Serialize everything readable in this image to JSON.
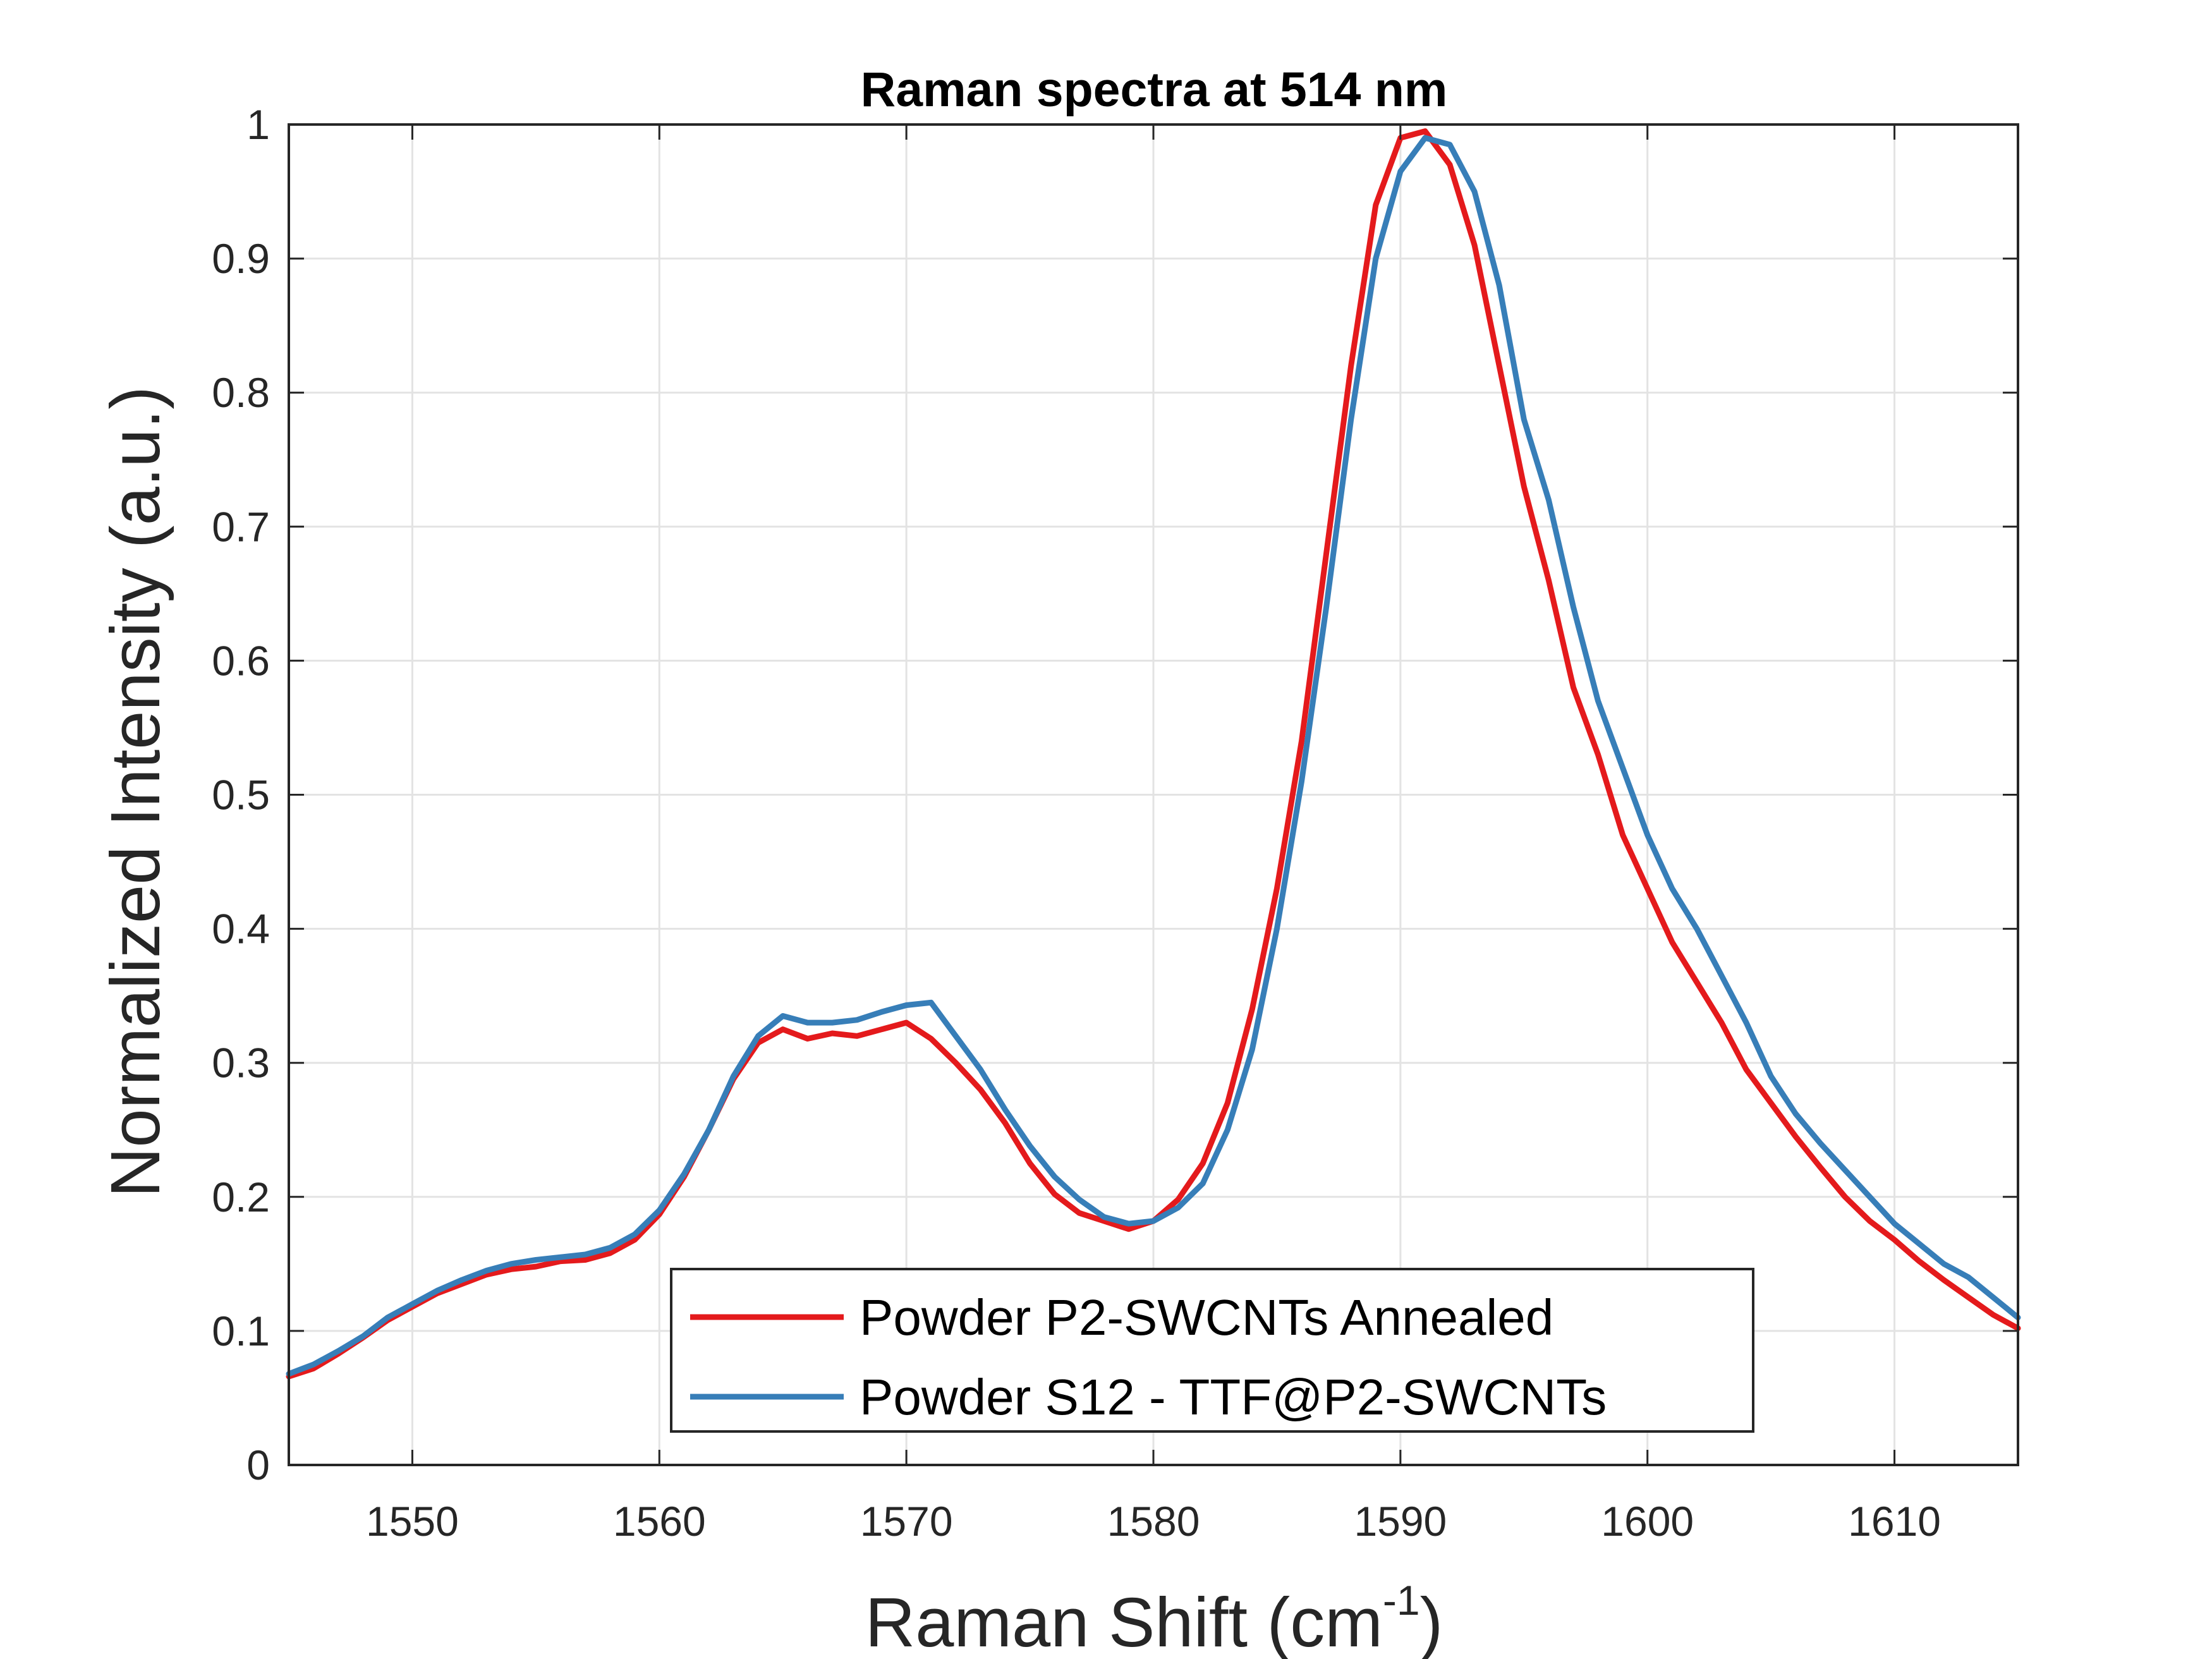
{
  "chart_data": {
    "type": "line",
    "title": "Raman spectra at 514 nm",
    "xlabel": "Raman Shift (cm",
    "xlabel_superscript": "-1",
    "xlabel_suffix": ")",
    "ylabel": "Normalized Intensity (a.u.)",
    "xlim": [
      1545,
      1615
    ],
    "ylim": [
      0,
      1
    ],
    "xticks": [
      1550,
      1560,
      1570,
      1580,
      1590,
      1600,
      1610
    ],
    "xtick_labels": [
      "1550",
      "1560",
      "1570",
      "1580",
      "1590",
      "1600",
      "1610"
    ],
    "yticks": [
      0,
      0.1,
      0.2,
      0.3,
      0.4,
      0.5,
      0.6,
      0.7,
      0.8,
      0.9,
      1
    ],
    "ytick_labels": [
      "0",
      "0.1",
      "0.2",
      "0.3",
      "0.4",
      "0.5",
      "0.6",
      "0.7",
      "0.8",
      "0.9",
      "1"
    ],
    "grid": true,
    "legend_position": "bottom-center",
    "series": [
      {
        "name": "Powder P2-SWCNTs Annealed",
        "color": "#e41a1c",
        "points": [
          [
            1545,
            0.066
          ],
          [
            1546,
            0.072
          ],
          [
            1547,
            0.083
          ],
          [
            1548,
            0.095
          ],
          [
            1549,
            0.108
          ],
          [
            1550,
            0.118
          ],
          [
            1551,
            0.128
          ],
          [
            1552,
            0.135
          ],
          [
            1553,
            0.142
          ],
          [
            1554,
            0.146
          ],
          [
            1555,
            0.148
          ],
          [
            1556,
            0.152
          ],
          [
            1557,
            0.153
          ],
          [
            1558,
            0.158
          ],
          [
            1559,
            0.168
          ],
          [
            1560,
            0.187
          ],
          [
            1561,
            0.215
          ],
          [
            1562,
            0.25
          ],
          [
            1563,
            0.288
          ],
          [
            1564,
            0.315
          ],
          [
            1565,
            0.325
          ],
          [
            1566,
            0.318
          ],
          [
            1567,
            0.322
          ],
          [
            1568,
            0.32
          ],
          [
            1569,
            0.325
          ],
          [
            1570,
            0.33
          ],
          [
            1571,
            0.318
          ],
          [
            1572,
            0.3
          ],
          [
            1573,
            0.28
          ],
          [
            1574,
            0.255
          ],
          [
            1575,
            0.225
          ],
          [
            1576,
            0.202
          ],
          [
            1577,
            0.188
          ],
          [
            1578,
            0.182
          ],
          [
            1579,
            0.176
          ],
          [
            1580,
            0.182
          ],
          [
            1581,
            0.198
          ],
          [
            1582,
            0.225
          ],
          [
            1583,
            0.27
          ],
          [
            1584,
            0.34
          ],
          [
            1585,
            0.43
          ],
          [
            1586,
            0.54
          ],
          [
            1587,
            0.68
          ],
          [
            1588,
            0.82
          ],
          [
            1589,
            0.94
          ],
          [
            1590,
            0.99
          ],
          [
            1591,
            0.995
          ],
          [
            1592,
            0.97
          ],
          [
            1593,
            0.91
          ],
          [
            1594,
            0.82
          ],
          [
            1595,
            0.73
          ],
          [
            1596,
            0.66
          ],
          [
            1597,
            0.58
          ],
          [
            1598,
            0.53
          ],
          [
            1599,
            0.47
          ],
          [
            1600,
            0.43
          ],
          [
            1601,
            0.39
          ],
          [
            1602,
            0.36
          ],
          [
            1603,
            0.33
          ],
          [
            1604,
            0.295
          ],
          [
            1605,
            0.27
          ],
          [
            1606,
            0.245
          ],
          [
            1607,
            0.222
          ],
          [
            1608,
            0.2
          ],
          [
            1609,
            0.182
          ],
          [
            1610,
            0.168
          ],
          [
            1611,
            0.152
          ],
          [
            1612,
            0.138
          ],
          [
            1613,
            0.125
          ],
          [
            1614,
            0.112
          ],
          [
            1615,
            0.102
          ]
        ]
      },
      {
        "name": "Powder S12 - TTF@P2-SWCNTs",
        "color": "#377eb8",
        "points": [
          [
            1545,
            0.068
          ],
          [
            1546,
            0.075
          ],
          [
            1547,
            0.085
          ],
          [
            1548,
            0.096
          ],
          [
            1549,
            0.11
          ],
          [
            1550,
            0.12
          ],
          [
            1551,
            0.13
          ],
          [
            1552,
            0.138
          ],
          [
            1553,
            0.145
          ],
          [
            1554,
            0.15
          ],
          [
            1555,
            0.153
          ],
          [
            1556,
            0.155
          ],
          [
            1557,
            0.157
          ],
          [
            1558,
            0.162
          ],
          [
            1559,
            0.172
          ],
          [
            1560,
            0.19
          ],
          [
            1561,
            0.217
          ],
          [
            1562,
            0.25
          ],
          [
            1563,
            0.29
          ],
          [
            1564,
            0.32
          ],
          [
            1565,
            0.335
          ],
          [
            1566,
            0.33
          ],
          [
            1567,
            0.33
          ],
          [
            1568,
            0.332
          ],
          [
            1569,
            0.338
          ],
          [
            1570,
            0.343
          ],
          [
            1571,
            0.345
          ],
          [
            1572,
            0.32
          ],
          [
            1573,
            0.295
          ],
          [
            1574,
            0.265
          ],
          [
            1575,
            0.238
          ],
          [
            1576,
            0.215
          ],
          [
            1577,
            0.198
          ],
          [
            1578,
            0.185
          ],
          [
            1579,
            0.18
          ],
          [
            1580,
            0.182
          ],
          [
            1581,
            0.192
          ],
          [
            1582,
            0.21
          ],
          [
            1583,
            0.25
          ],
          [
            1584,
            0.31
          ],
          [
            1585,
            0.4
          ],
          [
            1586,
            0.51
          ],
          [
            1587,
            0.64
          ],
          [
            1588,
            0.78
          ],
          [
            1589,
            0.9
          ],
          [
            1590,
            0.965
          ],
          [
            1591,
            0.99
          ],
          [
            1592,
            0.985
          ],
          [
            1593,
            0.95
          ],
          [
            1594,
            0.88
          ],
          [
            1595,
            0.78
          ],
          [
            1596,
            0.72
          ],
          [
            1597,
            0.64
          ],
          [
            1598,
            0.57
          ],
          [
            1599,
            0.52
          ],
          [
            1600,
            0.47
          ],
          [
            1601,
            0.43
          ],
          [
            1602,
            0.4
          ],
          [
            1603,
            0.365
          ],
          [
            1604,
            0.33
          ],
          [
            1605,
            0.29
          ],
          [
            1606,
            0.262
          ],
          [
            1607,
            0.24
          ],
          [
            1608,
            0.22
          ],
          [
            1609,
            0.2
          ],
          [
            1610,
            0.18
          ],
          [
            1611,
            0.165
          ],
          [
            1612,
            0.15
          ],
          [
            1613,
            0.14
          ],
          [
            1614,
            0.125
          ],
          [
            1615,
            0.11
          ]
        ]
      }
    ]
  }
}
